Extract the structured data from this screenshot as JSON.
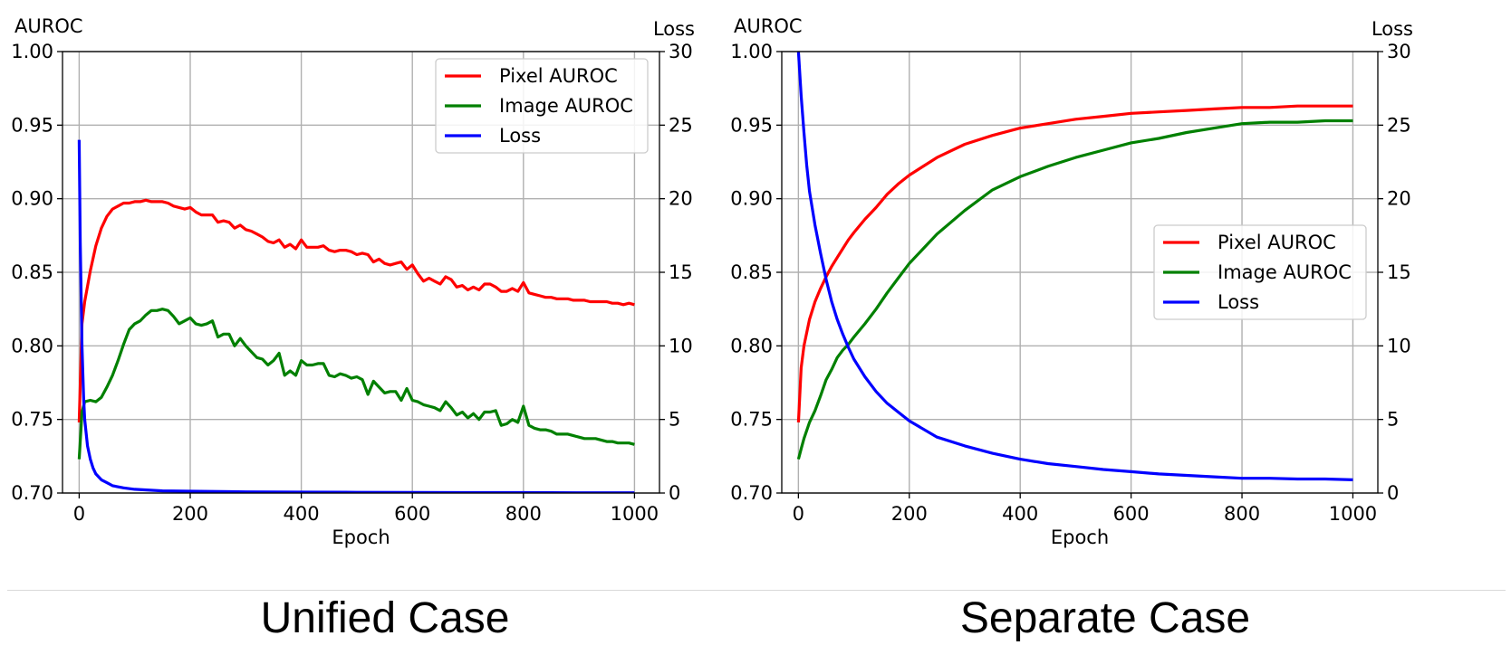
{
  "captions": [
    "Unified Case",
    "Separate Case"
  ],
  "chart_data": [
    {
      "type": "line",
      "title": "",
      "caption": "Unified Case",
      "xlabel": "Epoch",
      "ylabel_left": "AUROC",
      "ylabel_right": "Loss",
      "xlim": [
        -30,
        1045
      ],
      "ylim_left": [
        0.7,
        1.0
      ],
      "ylim_right": [
        0,
        30
      ],
      "xticks": [
        0,
        200,
        400,
        600,
        800,
        1000
      ],
      "yticks_left": [
        "0.70",
        "0.75",
        "0.80",
        "0.85",
        "0.90",
        "0.95",
        "1.00"
      ],
      "yticks_right": [
        "0",
        "5",
        "10",
        "15",
        "20",
        "25",
        "30"
      ],
      "grid": true,
      "legend": "top-right",
      "series": [
        {
          "name": "Pixel AUROC",
          "axis": "left",
          "color": "#ff0000",
          "x": [
            0,
            5,
            10,
            20,
            30,
            40,
            50,
            60,
            70,
            80,
            90,
            100,
            110,
            120,
            130,
            140,
            150,
            160,
            170,
            180,
            190,
            200,
            210,
            220,
            230,
            240,
            250,
            260,
            270,
            280,
            290,
            300,
            310,
            320,
            330,
            340,
            350,
            360,
            370,
            380,
            390,
            400,
            410,
            420,
            430,
            440,
            450,
            460,
            470,
            480,
            490,
            500,
            510,
            520,
            530,
            540,
            550,
            560,
            570,
            580,
            590,
            600,
            610,
            620,
            630,
            640,
            650,
            660,
            670,
            680,
            690,
            700,
            710,
            720,
            730,
            740,
            750,
            760,
            770,
            780,
            790,
            800,
            810,
            820,
            830,
            840,
            850,
            860,
            870,
            880,
            890,
            900,
            910,
            920,
            930,
            940,
            950,
            960,
            970,
            980,
            990,
            1000
          ],
          "y": [
            0.748,
            0.815,
            0.83,
            0.851,
            0.868,
            0.88,
            0.888,
            0.893,
            0.895,
            0.897,
            0.897,
            0.898,
            0.898,
            0.899,
            0.898,
            0.898,
            0.898,
            0.897,
            0.895,
            0.894,
            0.893,
            0.894,
            0.891,
            0.889,
            0.889,
            0.889,
            0.884,
            0.885,
            0.884,
            0.88,
            0.882,
            0.879,
            0.878,
            0.876,
            0.874,
            0.871,
            0.87,
            0.872,
            0.867,
            0.869,
            0.866,
            0.872,
            0.867,
            0.867,
            0.867,
            0.868,
            0.865,
            0.864,
            0.865,
            0.865,
            0.864,
            0.862,
            0.863,
            0.862,
            0.857,
            0.859,
            0.856,
            0.855,
            0.856,
            0.857,
            0.852,
            0.855,
            0.849,
            0.844,
            0.846,
            0.844,
            0.842,
            0.847,
            0.845,
            0.84,
            0.841,
            0.838,
            0.84,
            0.838,
            0.842,
            0.842,
            0.84,
            0.837,
            0.837,
            0.839,
            0.837,
            0.843,
            0.836,
            0.835,
            0.834,
            0.833,
            0.833,
            0.832,
            0.832,
            0.832,
            0.831,
            0.831,
            0.831,
            0.83,
            0.83,
            0.83,
            0.83,
            0.829,
            0.829,
            0.828,
            0.829,
            0.828
          ]
        },
        {
          "name": "Image AUROC",
          "axis": "left",
          "color": "#008000",
          "x": [
            0,
            5,
            10,
            20,
            30,
            40,
            50,
            60,
            70,
            80,
            90,
            100,
            110,
            120,
            130,
            140,
            150,
            160,
            170,
            180,
            190,
            200,
            210,
            220,
            230,
            240,
            250,
            260,
            270,
            280,
            290,
            300,
            310,
            320,
            330,
            340,
            350,
            360,
            370,
            380,
            390,
            400,
            410,
            420,
            430,
            440,
            450,
            460,
            470,
            480,
            490,
            500,
            510,
            520,
            530,
            540,
            550,
            560,
            570,
            580,
            590,
            600,
            610,
            620,
            630,
            640,
            650,
            660,
            670,
            680,
            690,
            700,
            710,
            720,
            730,
            740,
            750,
            760,
            770,
            780,
            790,
            800,
            810,
            820,
            830,
            840,
            850,
            860,
            870,
            880,
            890,
            900,
            910,
            920,
            930,
            940,
            950,
            960,
            970,
            980,
            990,
            1000
          ],
          "y": [
            0.723,
            0.755,
            0.762,
            0.763,
            0.762,
            0.765,
            0.772,
            0.78,
            0.79,
            0.801,
            0.811,
            0.815,
            0.817,
            0.821,
            0.824,
            0.824,
            0.825,
            0.824,
            0.82,
            0.815,
            0.817,
            0.819,
            0.815,
            0.814,
            0.815,
            0.817,
            0.806,
            0.808,
            0.808,
            0.8,
            0.805,
            0.8,
            0.796,
            0.792,
            0.791,
            0.787,
            0.79,
            0.795,
            0.78,
            0.783,
            0.78,
            0.79,
            0.787,
            0.787,
            0.788,
            0.788,
            0.78,
            0.779,
            0.781,
            0.78,
            0.778,
            0.779,
            0.777,
            0.767,
            0.776,
            0.772,
            0.768,
            0.769,
            0.769,
            0.763,
            0.771,
            0.763,
            0.762,
            0.76,
            0.759,
            0.758,
            0.756,
            0.762,
            0.758,
            0.753,
            0.755,
            0.751,
            0.754,
            0.75,
            0.755,
            0.755,
            0.756,
            0.746,
            0.747,
            0.75,
            0.748,
            0.759,
            0.746,
            0.744,
            0.743,
            0.743,
            0.742,
            0.74,
            0.74,
            0.74,
            0.739,
            0.738,
            0.737,
            0.737,
            0.737,
            0.736,
            0.735,
            0.735,
            0.734,
            0.734,
            0.734,
            0.733
          ]
        },
        {
          "name": "Loss",
          "axis": "right",
          "color": "#0000ff",
          "x": [
            0,
            2,
            5,
            8,
            10,
            15,
            20,
            25,
            30,
            40,
            50,
            60,
            80,
            100,
            150,
            200,
            300,
            400,
            500,
            600,
            700,
            800,
            900,
            1000
          ],
          "y": [
            24.0,
            17.0,
            10.0,
            6.5,
            5.0,
            3.2,
            2.3,
            1.7,
            1.3,
            0.9,
            0.7,
            0.5,
            0.35,
            0.25,
            0.15,
            0.12,
            0.08,
            0.06,
            0.05,
            0.04,
            0.03,
            0.03,
            0.02,
            0.02
          ]
        }
      ]
    },
    {
      "type": "line",
      "title": "",
      "caption": "Separate Case",
      "xlabel": "Epoch",
      "ylabel_left": "AUROC",
      "ylabel_right": "Loss",
      "xlim": [
        -30,
        1045
      ],
      "ylim_left": [
        0.7,
        1.0
      ],
      "ylim_right": [
        0,
        30
      ],
      "xticks": [
        0,
        200,
        400,
        600,
        800,
        1000
      ],
      "yticks_left": [
        "0.70",
        "0.75",
        "0.80",
        "0.85",
        "0.90",
        "0.95",
        "1.00"
      ],
      "yticks_right": [
        "0",
        "5",
        "10",
        "15",
        "20",
        "25",
        "30"
      ],
      "grid": true,
      "legend": "center-right",
      "series": [
        {
          "name": "Pixel AUROC",
          "axis": "left",
          "color": "#ff0000",
          "x": [
            0,
            5,
            10,
            20,
            30,
            40,
            50,
            60,
            70,
            80,
            90,
            100,
            120,
            140,
            160,
            180,
            200,
            250,
            300,
            350,
            400,
            450,
            500,
            550,
            600,
            650,
            700,
            750,
            800,
            850,
            900,
            950,
            1000
          ],
          "y": [
            0.748,
            0.785,
            0.8,
            0.818,
            0.83,
            0.839,
            0.847,
            0.854,
            0.86,
            0.866,
            0.872,
            0.877,
            0.886,
            0.894,
            0.903,
            0.91,
            0.916,
            0.928,
            0.937,
            0.943,
            0.948,
            0.951,
            0.954,
            0.956,
            0.958,
            0.959,
            0.96,
            0.961,
            0.962,
            0.962,
            0.963,
            0.963,
            0.963
          ]
        },
        {
          "name": "Image AUROC",
          "axis": "left",
          "color": "#008000",
          "x": [
            0,
            5,
            10,
            20,
            30,
            40,
            50,
            60,
            70,
            80,
            90,
            100,
            120,
            140,
            160,
            180,
            200,
            250,
            300,
            350,
            400,
            450,
            500,
            550,
            600,
            650,
            700,
            750,
            800,
            850,
            900,
            950,
            1000
          ],
          "y": [
            0.723,
            0.73,
            0.737,
            0.748,
            0.756,
            0.766,
            0.777,
            0.784,
            0.792,
            0.797,
            0.801,
            0.806,
            0.815,
            0.825,
            0.836,
            0.846,
            0.856,
            0.876,
            0.892,
            0.906,
            0.915,
            0.922,
            0.928,
            0.933,
            0.938,
            0.941,
            0.945,
            0.948,
            0.951,
            0.952,
            0.952,
            0.953,
            0.953
          ]
        },
        {
          "name": "Loss",
          "axis": "right",
          "color": "#0000ff",
          "x": [
            0,
            5,
            10,
            15,
            20,
            30,
            40,
            50,
            60,
            70,
            80,
            90,
            100,
            120,
            140,
            160,
            180,
            200,
            250,
            300,
            350,
            400,
            450,
            500,
            550,
            600,
            650,
            700,
            750,
            800,
            850,
            900,
            950,
            1000
          ],
          "y": [
            30.0,
            27.0,
            24.5,
            22.3,
            20.5,
            18.2,
            16.3,
            14.5,
            13.0,
            11.8,
            10.8,
            9.9,
            9.1,
            7.9,
            6.9,
            6.1,
            5.5,
            4.9,
            3.8,
            3.2,
            2.7,
            2.3,
            2.0,
            1.8,
            1.6,
            1.45,
            1.3,
            1.2,
            1.1,
            1.0,
            1.0,
            0.95,
            0.95,
            0.9
          ]
        }
      ]
    }
  ]
}
